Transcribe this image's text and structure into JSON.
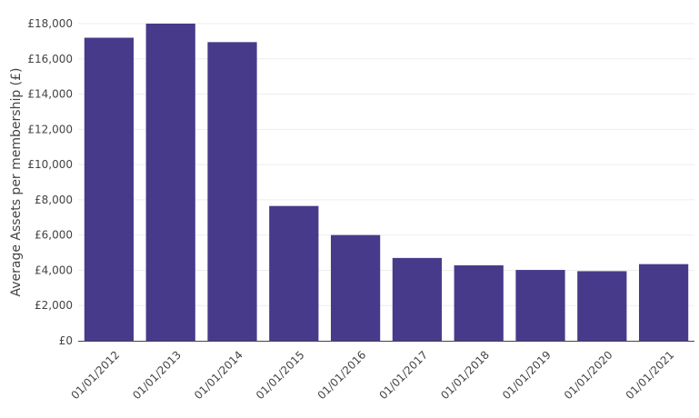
{
  "chart_data": {
    "type": "bar",
    "title": "",
    "xlabel": "",
    "ylabel": "Average Assets per membership (£)",
    "categories": [
      "01/01/2012",
      "01/01/2013",
      "01/01/2014",
      "01/01/2015",
      "01/01/2016",
      "01/01/2017",
      "01/01/2018",
      "01/01/2019",
      "01/01/2020",
      "01/01/2021"
    ],
    "values": [
      17200,
      18000,
      16950,
      7650,
      6000,
      4700,
      4280,
      4020,
      3950,
      4350
    ],
    "ylim": [
      0,
      18000
    ],
    "yticks": [
      0,
      2000,
      4000,
      6000,
      8000,
      10000,
      12000,
      14000,
      16000,
      18000
    ],
    "ytick_labels": [
      "£0",
      "£2,000",
      "£4,000",
      "£6,000",
      "£8,000",
      "£10,000",
      "£12,000",
      "£14,000",
      "£16,000",
      "£18,000"
    ],
    "grid": true,
    "bar_color": "#483a8a"
  }
}
